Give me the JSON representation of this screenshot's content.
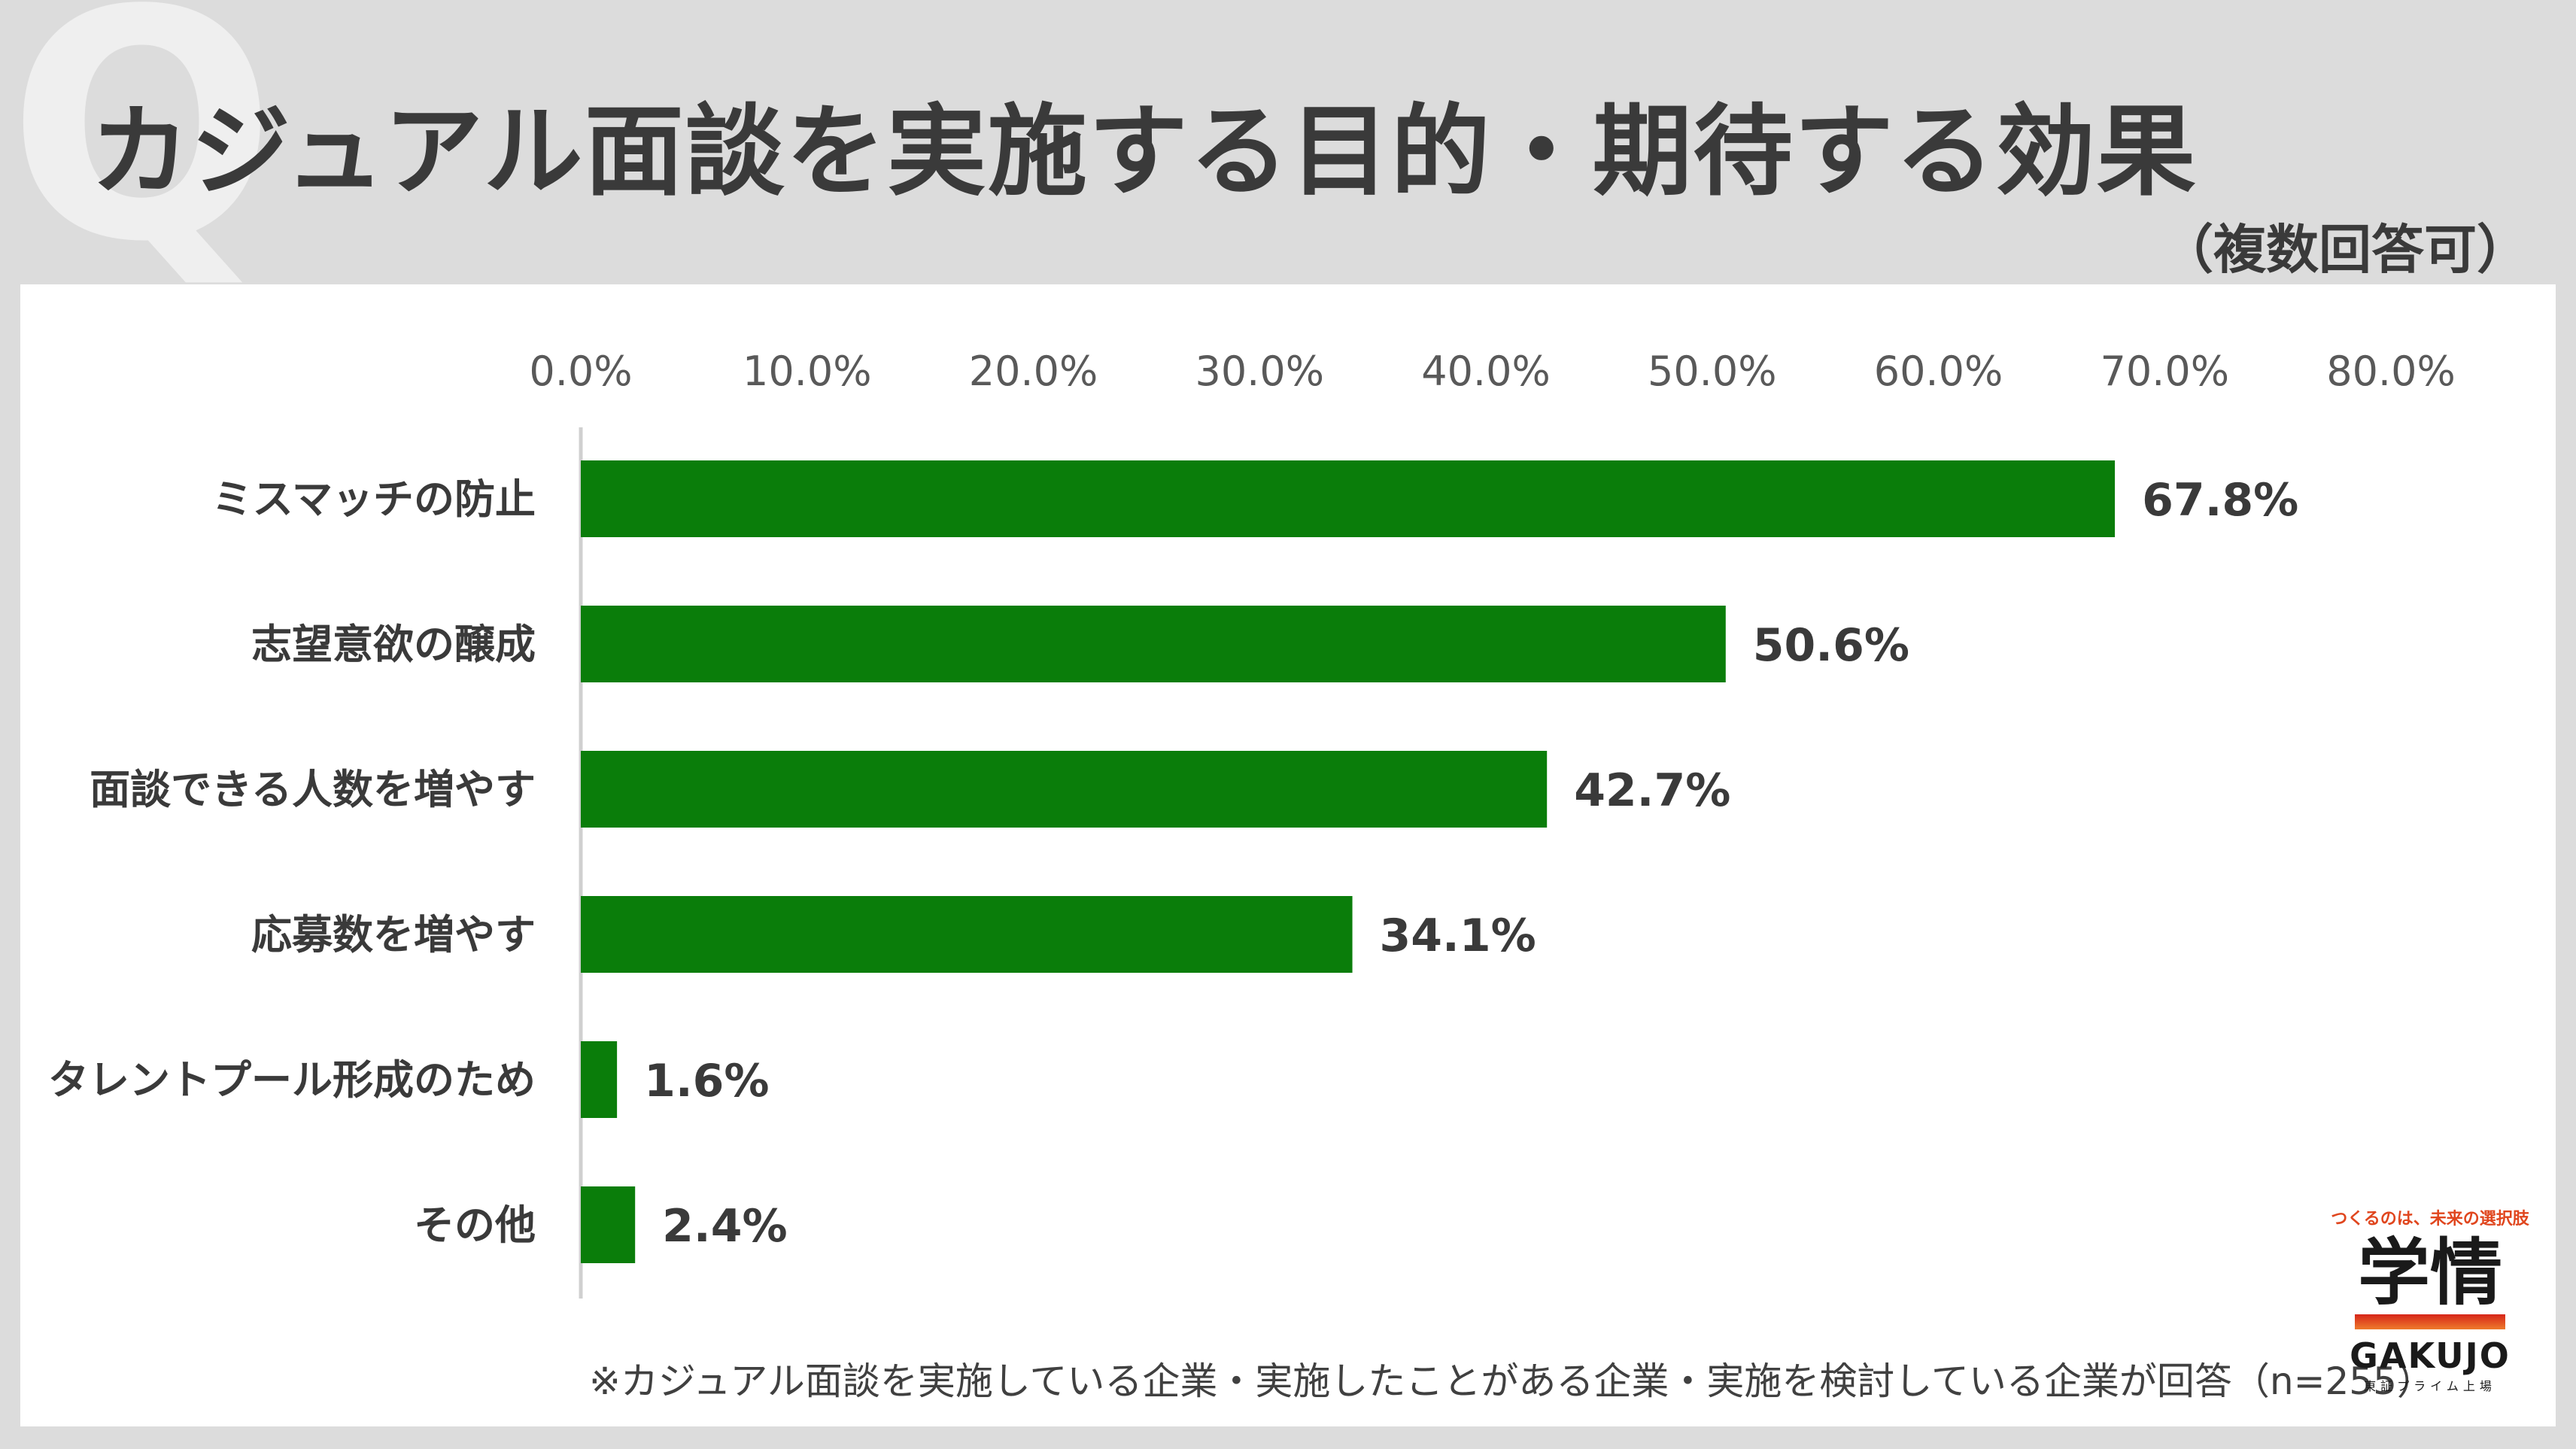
{
  "watermark": "Q",
  "title": "カジュアル面談を実施する目的・期待する効果",
  "subtitle": "（複数回答可）",
  "footnote": "※カジュアル面談を実施している企業・実施したことがある企業・実施を検討している企業が回答（n=255）",
  "logo": {
    "tagline": "つくるのは、未来の選択肢",
    "mark": "学情",
    "name": "GAKUJO",
    "sub": "東証プライム上場"
  },
  "colors": {
    "bar": "#0a7d0a",
    "axis": "#d0d0d0",
    "text": "#3a3a3a"
  },
  "chart_data": {
    "type": "bar",
    "orientation": "horizontal",
    "categories": [
      "ミスマッチの防止",
      "志望意欲の醸成",
      "面談できる人数を増やす",
      "応募数を増やす",
      "タレントプール形成のため",
      "その他"
    ],
    "values": [
      67.8,
      50.6,
      42.7,
      34.1,
      1.6,
      2.4
    ],
    "value_labels": [
      "67.8%",
      "50.6%",
      "42.7%",
      "34.1%",
      "1.6%",
      "2.4%"
    ],
    "x_ticks": [
      "0.0%",
      "10.0%",
      "20.0%",
      "30.0%",
      "40.0%",
      "50.0%",
      "60.0%",
      "70.0%",
      "80.0%"
    ],
    "xlim": [
      0,
      80
    ],
    "axis_position": "top",
    "grid": false
  }
}
